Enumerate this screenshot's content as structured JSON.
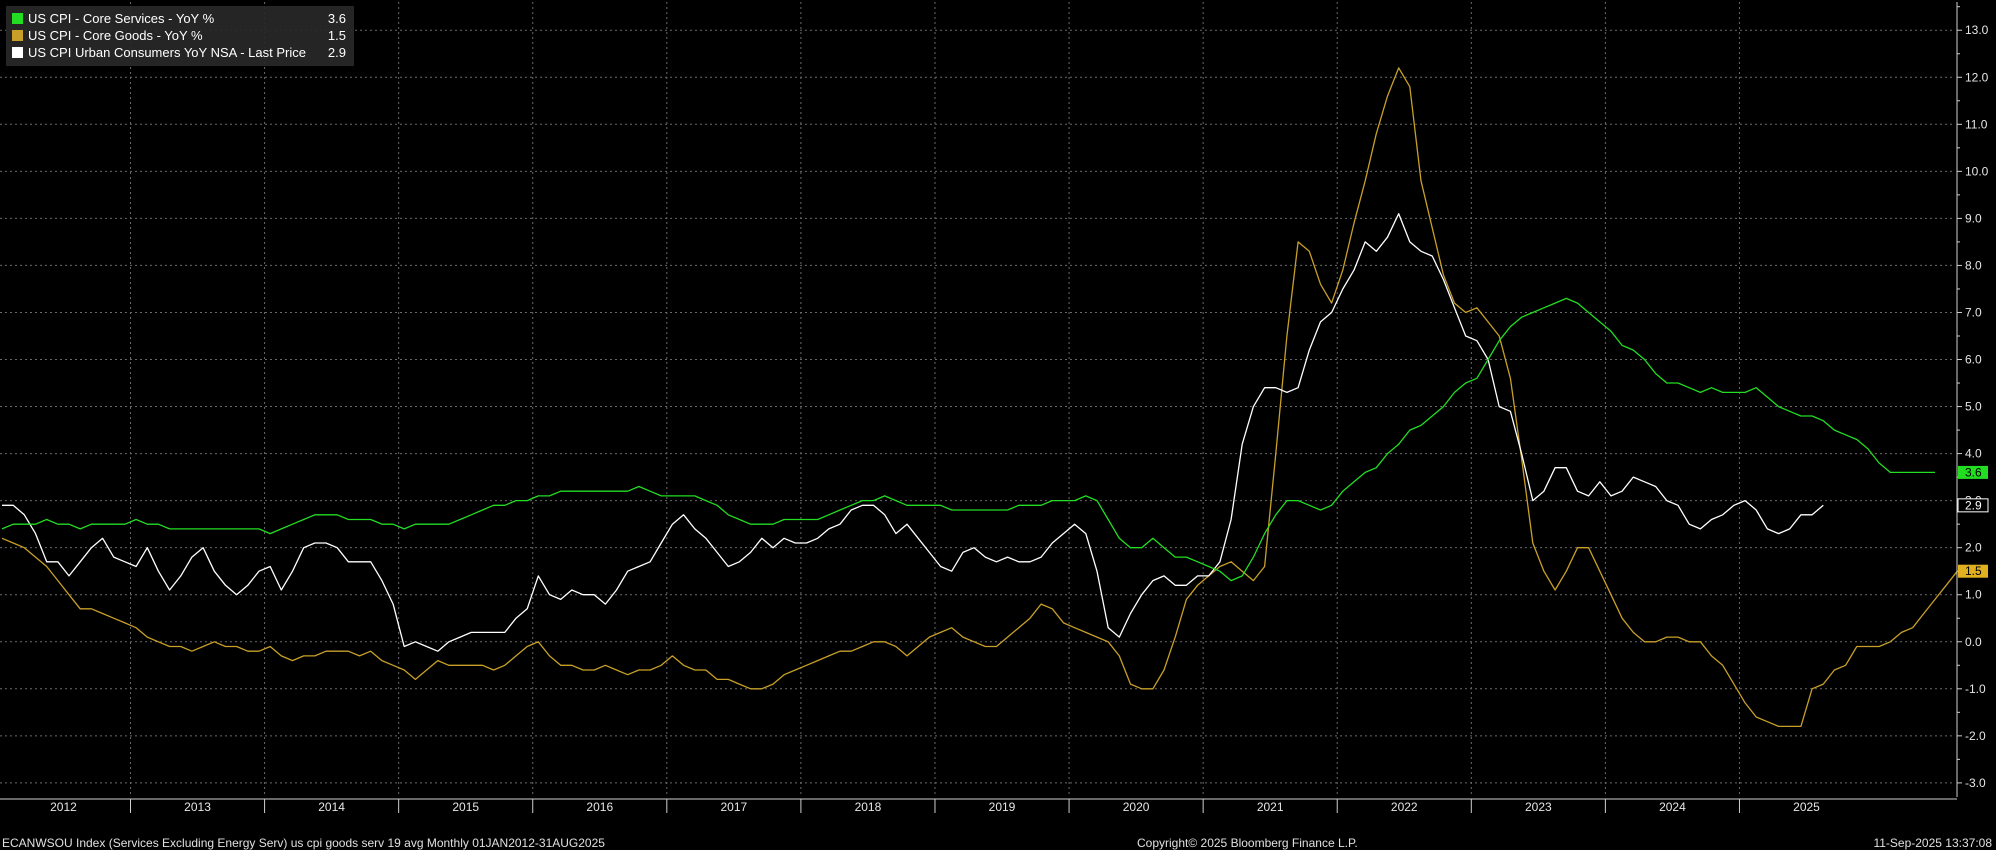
{
  "legend": [
    {
      "name": "US CPI - Core Services - YoY %",
      "value": "3.6",
      "color": "#22dd22"
    },
    {
      "name": "US CPI - Core Goods - YoY %",
      "value": "1.5",
      "color": "#c8a028"
    },
    {
      "name": "US CPI Urban Consumers YoY NSA - Last Price",
      "value": "2.9",
      "color": "#ffffff"
    }
  ],
  "footer": {
    "left": "ECANWSOU Index (Services Excluding Energy Serv) us cpi goods serv 19 avg  Monthly 01JAN2012-31AUG2025",
    "center": "Copyright© 2025 Bloomberg Finance L.P.",
    "right": "11-Sep-2025 13:37:08"
  },
  "chart_data": {
    "type": "line",
    "x_start": "2012-01",
    "x_end": "2025-08",
    "frequency": "monthly",
    "ylim": [
      -3.3,
      13.6
    ],
    "yticks": [
      -3,
      -2,
      -1,
      0,
      1,
      2,
      3,
      4,
      5,
      6,
      7,
      8,
      9,
      10,
      11,
      12,
      13
    ],
    "ytick_labels": [
      "-3.0",
      "-2.0",
      "-1.0",
      "0.0",
      "1.0",
      "2.0",
      "3.0",
      "4.0",
      "5.0",
      "6.0",
      "7.0",
      "8.0",
      "9.0",
      "10.0",
      "11.0",
      "12.0",
      "13.0"
    ],
    "xticks": [
      "2012",
      "2013",
      "2014",
      "2015",
      "2016",
      "2017",
      "2018",
      "2019",
      "2020",
      "2021",
      "2022",
      "2023",
      "2024",
      "2025"
    ],
    "grid": true,
    "legend_position": "top-left",
    "series": [
      {
        "name": "US CPI - Core Services - YoY %",
        "color": "#22dd22",
        "last_label": "3.6",
        "values": [
          2.4,
          2.5,
          2.5,
          2.5,
          2.6,
          2.5,
          2.5,
          2.4,
          2.5,
          2.5,
          2.5,
          2.5,
          2.6,
          2.5,
          2.5,
          2.4,
          2.4,
          2.4,
          2.4,
          2.4,
          2.4,
          2.4,
          2.4,
          2.4,
          2.3,
          2.4,
          2.5,
          2.6,
          2.7,
          2.7,
          2.7,
          2.6,
          2.6,
          2.6,
          2.5,
          2.5,
          2.4,
          2.5,
          2.5,
          2.5,
          2.5,
          2.6,
          2.7,
          2.8,
          2.9,
          2.9,
          3.0,
          3.0,
          3.1,
          3.1,
          3.2,
          3.2,
          3.2,
          3.2,
          3.2,
          3.2,
          3.2,
          3.3,
          3.2,
          3.1,
          3.1,
          3.1,
          3.1,
          3.0,
          2.9,
          2.7,
          2.6,
          2.5,
          2.5,
          2.5,
          2.6,
          2.6,
          2.6,
          2.6,
          2.7,
          2.8,
          2.9,
          3.0,
          3.0,
          3.1,
          3.0,
          2.9,
          2.9,
          2.9,
          2.9,
          2.8,
          2.8,
          2.8,
          2.8,
          2.8,
          2.8,
          2.9,
          2.9,
          2.9,
          3.0,
          3.0,
          3.0,
          3.1,
          3.0,
          2.6,
          2.2,
          2.0,
          2.0,
          2.2,
          2.0,
          1.8,
          1.8,
          1.7,
          1.6,
          1.5,
          1.3,
          1.4,
          1.8,
          2.3,
          2.7,
          3.0,
          3.0,
          2.9,
          2.8,
          2.9,
          3.2,
          3.4,
          3.6,
          3.7,
          4.0,
          4.2,
          4.5,
          4.6,
          4.8,
          5.0,
          5.3,
          5.5,
          5.6,
          6.0,
          6.4,
          6.7,
          6.9,
          7.0,
          7.1,
          7.2,
          7.3,
          7.2,
          7.0,
          6.8,
          6.6,
          6.3,
          6.2,
          6.0,
          5.7,
          5.5,
          5.5,
          5.4,
          5.3,
          5.4,
          5.3,
          5.3,
          5.3,
          5.4,
          5.2,
          5.0,
          4.9,
          4.8,
          4.8,
          4.7,
          4.5,
          4.4,
          4.3,
          4.1,
          3.8,
          3.6,
          3.6,
          3.6,
          3.6,
          3.6
        ]
      },
      {
        "name": "US CPI - Core Goods - YoY %",
        "color": "#c8a028",
        "last_label": "1.5",
        "values": [
          2.2,
          2.1,
          2.0,
          1.8,
          1.6,
          1.3,
          1.0,
          0.7,
          0.7,
          0.6,
          0.5,
          0.4,
          0.3,
          0.1,
          0.0,
          -0.1,
          -0.1,
          -0.2,
          -0.1,
          0.0,
          -0.1,
          -0.1,
          -0.2,
          -0.2,
          -0.1,
          -0.3,
          -0.4,
          -0.3,
          -0.3,
          -0.2,
          -0.2,
          -0.2,
          -0.3,
          -0.2,
          -0.4,
          -0.5,
          -0.6,
          -0.8,
          -0.6,
          -0.4,
          -0.5,
          -0.5,
          -0.5,
          -0.5,
          -0.6,
          -0.5,
          -0.3,
          -0.1,
          0.0,
          -0.3,
          -0.5,
          -0.5,
          -0.6,
          -0.6,
          -0.5,
          -0.6,
          -0.7,
          -0.6,
          -0.6,
          -0.5,
          -0.3,
          -0.5,
          -0.6,
          -0.6,
          -0.8,
          -0.8,
          -0.9,
          -1.0,
          -1.0,
          -0.9,
          -0.7,
          -0.6,
          -0.5,
          -0.4,
          -0.3,
          -0.2,
          -0.2,
          -0.1,
          0.0,
          0.0,
          -0.1,
          -0.3,
          -0.1,
          0.1,
          0.2,
          0.3,
          0.1,
          0.0,
          -0.1,
          -0.1,
          0.1,
          0.3,
          0.5,
          0.8,
          0.7,
          0.4,
          0.3,
          0.2,
          0.1,
          0.0,
          -0.3,
          -0.9,
          -1.0,
          -1.0,
          -0.6,
          0.1,
          0.9,
          1.2,
          1.4,
          1.6,
          1.7,
          1.5,
          1.3,
          1.6,
          4.0,
          6.5,
          8.5,
          8.3,
          7.6,
          7.2,
          7.9,
          8.9,
          9.8,
          10.8,
          11.6,
          12.2,
          11.8,
          9.8,
          8.8,
          7.8,
          7.2,
          7.0,
          7.1,
          6.8,
          6.5,
          5.6,
          3.9,
          2.1,
          1.5,
          1.1,
          1.5,
          2.0,
          2.0,
          1.5,
          1.0,
          0.5,
          0.2,
          0.0,
          0.0,
          0.1,
          0.1,
          0.0,
          0.0,
          -0.3,
          -0.5,
          -0.9,
          -1.3,
          -1.6,
          -1.7,
          -1.8,
          -1.8,
          -1.8,
          -1.0,
          -0.9,
          -0.6,
          -0.5,
          -0.1,
          -0.1,
          -0.1,
          0.0,
          0.2,
          0.3,
          0.6,
          0.9,
          1.2,
          1.5
        ]
      },
      {
        "name": "US CPI Urban Consumers YoY NSA - Last Price",
        "color": "#ffffff",
        "last_label": "2.9",
        "values": [
          2.9,
          2.9,
          2.7,
          2.3,
          1.7,
          1.7,
          1.4,
          1.7,
          2.0,
          2.2,
          1.8,
          1.7,
          1.6,
          2.0,
          1.5,
          1.1,
          1.4,
          1.8,
          2.0,
          1.5,
          1.2,
          1.0,
          1.2,
          1.5,
          1.6,
          1.1,
          1.5,
          2.0,
          2.1,
          2.1,
          2.0,
          1.7,
          1.7,
          1.7,
          1.3,
          0.8,
          -0.1,
          0.0,
          -0.1,
          -0.2,
          0.0,
          0.1,
          0.2,
          0.2,
          0.2,
          0.2,
          0.5,
          0.7,
          1.4,
          1.0,
          0.9,
          1.1,
          1.0,
          1.0,
          0.8,
          1.1,
          1.5,
          1.6,
          1.7,
          2.1,
          2.5,
          2.7,
          2.4,
          2.2,
          1.9,
          1.6,
          1.7,
          1.9,
          2.2,
          2.0,
          2.2,
          2.1,
          2.1,
          2.2,
          2.4,
          2.5,
          2.8,
          2.9,
          2.9,
          2.7,
          2.3,
          2.5,
          2.2,
          1.9,
          1.6,
          1.5,
          1.9,
          2.0,
          1.8,
          1.7,
          1.8,
          1.7,
          1.7,
          1.8,
          2.1,
          2.3,
          2.5,
          2.3,
          1.5,
          0.3,
          0.1,
          0.6,
          1.0,
          1.3,
          1.4,
          1.2,
          1.2,
          1.4,
          1.4,
          1.7,
          2.6,
          4.2,
          5.0,
          5.4,
          5.4,
          5.3,
          5.4,
          6.2,
          6.8,
          7.0,
          7.5,
          7.9,
          8.5,
          8.3,
          8.6,
          9.1,
          8.5,
          8.3,
          8.2,
          7.7,
          7.1,
          6.5,
          6.4,
          6.0,
          5.0,
          4.9,
          4.0,
          3.0,
          3.2,
          3.7,
          3.7,
          3.2,
          3.1,
          3.4,
          3.1,
          3.2,
          3.5,
          3.4,
          3.3,
          3.0,
          2.9,
          2.5,
          2.4,
          2.6,
          2.7,
          2.9,
          3.0,
          2.8,
          2.4,
          2.3,
          2.4,
          2.7,
          2.7,
          2.9
        ]
      }
    ]
  }
}
